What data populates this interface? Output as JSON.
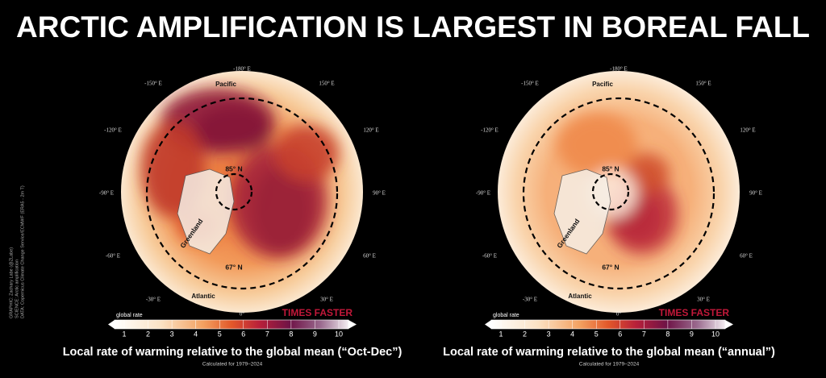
{
  "title": "ARCTIC AMPLIFICATION IS LARGEST IN BOREAL FALL",
  "credits": [
    "GRAPHIC: Zachary Labe (@ZLabe)",
    "SCIENCE: Arctic amplification",
    "DATA: Copernicus Climate Change Service/ECMWF (ERA5 - 2m T)"
  ],
  "panels": [
    {
      "longitudes": [
        "-180° E",
        "-150° E",
        "150° E",
        "-120° E",
        "120° E",
        "-90° E",
        "90° E",
        "-60° E",
        "60° E",
        "-30° E",
        "30° E",
        "0°"
      ],
      "ocean_top": "Pacific",
      "ocean_bottom": "Atlantic",
      "greenland": "Greenland",
      "inner_lat": "85° N",
      "outer_lat": "67° N",
      "scale_label": "global rate",
      "scale_title": "TIMES FASTER",
      "scale_ticks": [
        1,
        2,
        3,
        4,
        5,
        6,
        7,
        8,
        9,
        10
      ],
      "caption": "Local rate of warming relative to the global mean (“Oct-Dec”)",
      "note": "Calculated for 1979–2024"
    },
    {
      "longitudes": [
        "-180° E",
        "-150° E",
        "150° E",
        "-120° E",
        "120° E",
        "-90° E",
        "90° E",
        "-60° E",
        "60° E",
        "-30° E",
        "30° E",
        "0°"
      ],
      "ocean_top": "Pacific",
      "ocean_bottom": "Atlantic",
      "greenland": "Greenland",
      "inner_lat": "85° N",
      "outer_lat": "67° N",
      "scale_label": "global rate",
      "scale_title": "TIMES FASTER",
      "scale_ticks": [
        1,
        2,
        3,
        4,
        5,
        6,
        7,
        8,
        9,
        10
      ],
      "caption": "Local rate of warming relative to the global mean (“annual”)",
      "note": "Calculated for 1979–2024"
    }
  ]
}
